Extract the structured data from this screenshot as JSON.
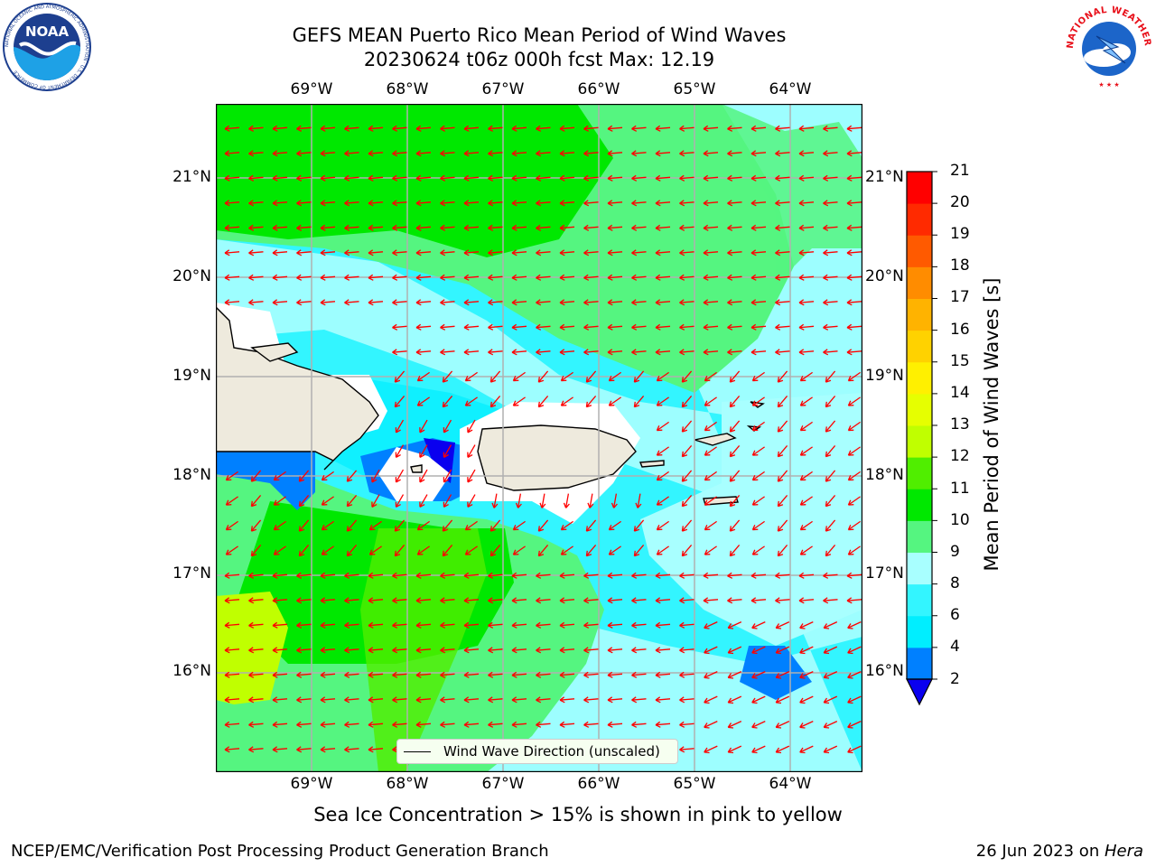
{
  "title": {
    "line1": "GEFS MEAN Puerto Rico Mean Period of Wind Waves",
    "line2": "20230624 t06z 000h fcst   Max: 12.19"
  },
  "logos": {
    "noaa_text": "NOAA",
    "noaa_ring_text": "NATIONAL OCEANIC AND ATMOSPHERIC ADMINISTRATION · U.S. DEPARTMENT OF COMMERCE",
    "nws_ring_text": "NATIONAL WEATHER SERVICE"
  },
  "map": {
    "lon_labels": [
      "69°W",
      "68°W",
      "67°W",
      "66°W",
      "65°W",
      "64°W"
    ],
    "lat_labels": [
      "21°N",
      "20°N",
      "19°N",
      "18°N",
      "17°N",
      "16°N"
    ],
    "lon_range": [
      -70.0,
      -63.25
    ],
    "lat_range": [
      15.0,
      21.75
    ],
    "legend_label": "Wind Wave Direction (unscaled)",
    "arrow_color": "#ff0000",
    "land_color": "#eeeadd"
  },
  "colorbar": {
    "label": "Mean Period of Wind Waves [s]",
    "ticks": [
      "21",
      "20",
      "19",
      "18",
      "17",
      "16",
      "15",
      "14",
      "13",
      "12",
      "11",
      "10",
      "9",
      "8",
      "6",
      "4",
      "2"
    ],
    "levels": [
      2,
      4,
      6,
      8,
      9,
      10,
      11,
      12,
      13,
      14,
      15,
      16,
      17,
      18,
      19,
      20,
      21
    ],
    "colors": [
      "#0a00ef",
      "#0080ff",
      "#00eeff",
      "#33f5ff",
      "#a8ffff",
      "#55f580",
      "#00e800",
      "#50ee00",
      "#c0ff00",
      "#e6ff00",
      "#fff000",
      "#ffd200",
      "#ffb300",
      "#ff8c00",
      "#ff5a00",
      "#ff2a00",
      "#ff0000"
    ]
  },
  "bottom_note": "Sea Ice Concentration > 15% is shown in pink to yellow",
  "footer": {
    "left": "NCEP/EMC/Verification Post Processing Product Generation Branch",
    "right_date": "26 Jun 2023 on ",
    "right_machine": "Hera"
  }
}
